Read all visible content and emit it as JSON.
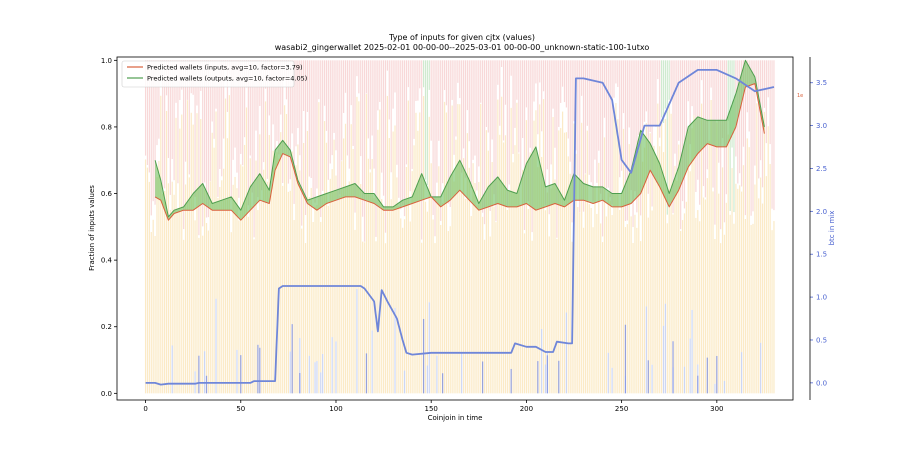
{
  "chart_data": {
    "type": "line",
    "title": "Type of inputs for given cjtx (values)",
    "subtitle": "wasabi2_gingerwallet 2025-02-01 00-00-00--2025-03-01 00-00-00_unknown-static-100-1utxo",
    "xlabel": "Coinjoin in time",
    "ylabel": "Fraction of inputs values",
    "y2label": "btc in mix",
    "xlim": [
      -15,
      340
    ],
    "ylim": [
      -0.02,
      1.01
    ],
    "y2lim": [
      -0.2,
      3.8
    ],
    "x_ticks": [
      0,
      50,
      100,
      150,
      200,
      250,
      300
    ],
    "y_ticks": [
      0.0,
      0.2,
      0.4,
      0.6,
      0.8,
      1.0
    ],
    "y2_ticks": [
      0.0,
      0.5,
      1.0,
      1.5,
      2.0,
      2.5,
      3.0,
      3.5
    ],
    "grid": false,
    "legend_position": "top-left",
    "right_axis_marker": "1e",
    "series": [
      {
        "name": "Predicted wallets (inputs, avg=10, factor=3.79)",
        "color": "#d9613c",
        "x": [
          5,
          8,
          12,
          15,
          20,
          25,
          30,
          35,
          40,
          45,
          50,
          55,
          60,
          65,
          68,
          72,
          76,
          80,
          85,
          90,
          95,
          100,
          105,
          110,
          115,
          120,
          125,
          130,
          135,
          140,
          145,
          150,
          155,
          160,
          165,
          170,
          175,
          180,
          185,
          190,
          195,
          200,
          205,
          210,
          215,
          220,
          225,
          230,
          235,
          240,
          245,
          250,
          255,
          260,
          265,
          270,
          275,
          280,
          285,
          290,
          295,
          300,
          305,
          310,
          315,
          320,
          325
        ],
        "y": [
          0.59,
          0.58,
          0.52,
          0.54,
          0.55,
          0.55,
          0.57,
          0.55,
          0.55,
          0.55,
          0.52,
          0.55,
          0.58,
          0.57,
          0.67,
          0.72,
          0.71,
          0.63,
          0.57,
          0.55,
          0.57,
          0.58,
          0.59,
          0.59,
          0.58,
          0.57,
          0.55,
          0.55,
          0.56,
          0.57,
          0.58,
          0.59,
          0.56,
          0.58,
          0.61,
          0.58,
          0.55,
          0.56,
          0.57,
          0.56,
          0.56,
          0.57,
          0.55,
          0.56,
          0.57,
          0.56,
          0.58,
          0.58,
          0.57,
          0.58,
          0.56,
          0.56,
          0.57,
          0.6,
          0.67,
          0.62,
          0.56,
          0.61,
          0.68,
          0.72,
          0.75,
          0.74,
          0.74,
          0.8,
          0.92,
          0.93,
          0.78
        ]
      },
      {
        "name": "Predicted wallets (outputs, avg=10, factor=4.05)",
        "color": "#4f9e4f",
        "x": [
          5,
          8,
          12,
          15,
          20,
          25,
          30,
          35,
          40,
          45,
          50,
          55,
          60,
          65,
          68,
          72,
          76,
          80,
          85,
          90,
          95,
          100,
          105,
          110,
          115,
          120,
          125,
          130,
          135,
          140,
          145,
          150,
          155,
          160,
          165,
          170,
          175,
          180,
          185,
          190,
          195,
          200,
          205,
          210,
          215,
          220,
          225,
          230,
          235,
          240,
          245,
          250,
          255,
          260,
          265,
          270,
          275,
          280,
          285,
          290,
          295,
          300,
          305,
          310,
          315,
          320,
          325
        ],
        "y": [
          0.7,
          0.64,
          0.53,
          0.55,
          0.56,
          0.6,
          0.63,
          0.57,
          0.58,
          0.59,
          0.55,
          0.62,
          0.66,
          0.61,
          0.73,
          0.76,
          0.73,
          0.64,
          0.58,
          0.59,
          0.6,
          0.61,
          0.62,
          0.63,
          0.6,
          0.6,
          0.56,
          0.56,
          0.58,
          0.59,
          0.66,
          0.59,
          0.59,
          0.65,
          0.7,
          0.64,
          0.57,
          0.62,
          0.65,
          0.61,
          0.6,
          0.69,
          0.74,
          0.62,
          0.63,
          0.58,
          0.66,
          0.63,
          0.62,
          0.62,
          0.6,
          0.6,
          0.67,
          0.79,
          0.75,
          0.69,
          0.6,
          0.68,
          0.8,
          0.83,
          0.82,
          0.82,
          0.82,
          0.9,
          1.0,
          0.95,
          0.8
        ]
      },
      {
        "name": "btc in mix",
        "axis": "right",
        "color": "#6f86d9",
        "x": [
          0,
          5,
          8,
          12,
          26,
          28,
          40,
          55,
          57,
          68,
          70,
          72,
          110,
          113,
          115,
          120,
          122,
          124,
          127,
          132,
          135,
          137,
          140,
          150,
          160,
          170,
          180,
          192,
          194,
          200,
          205,
          210,
          214,
          216,
          222,
          224,
          226,
          230,
          240,
          245,
          250,
          255,
          262,
          270,
          280,
          290,
          300,
          310,
          320,
          330
        ],
        "y": [
          0.0,
          0.0,
          -0.02,
          -0.01,
          -0.01,
          0.0,
          0.0,
          0.0,
          0.02,
          0.02,
          1.1,
          1.13,
          1.13,
          1.13,
          1.1,
          0.95,
          0.6,
          1.08,
          0.95,
          0.75,
          0.5,
          0.35,
          0.33,
          0.35,
          0.35,
          0.35,
          0.35,
          0.35,
          0.46,
          0.42,
          0.42,
          0.36,
          0.36,
          0.48,
          0.46,
          0.46,
          3.55,
          3.55,
          3.5,
          3.3,
          2.6,
          2.45,
          3.0,
          3.0,
          3.5,
          3.65,
          3.65,
          3.55,
          3.4,
          3.45
        ]
      }
    ],
    "background_bars": {
      "colors": {
        "top": "#f2b8b8",
        "middle": "#fae3b3",
        "bottom": "#b7c4ee",
        "accent": "#a8d9a8"
      }
    }
  }
}
